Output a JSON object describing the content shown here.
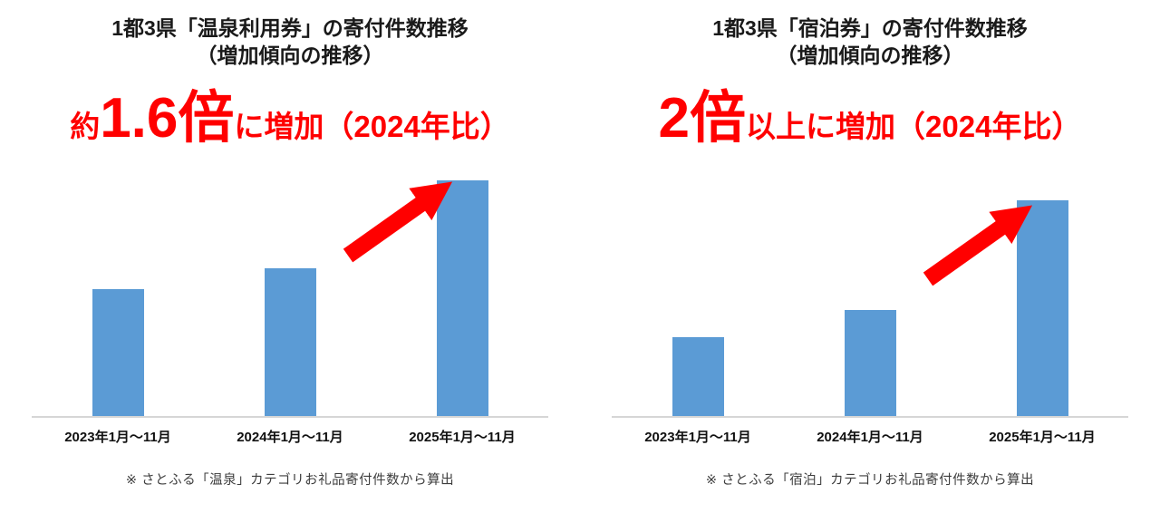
{
  "page": {
    "background": "#ffffff",
    "bar_color": "#5b9bd5",
    "highlight_color": "#ff0000"
  },
  "chart_data": [
    {
      "type": "bar",
      "title": "1都3県「温泉利用券」の寄付件数推移",
      "subtitle": "（増加傾向の推移）",
      "annotation": {
        "prefix": "約",
        "big": "1.6倍",
        "rest": "に増加（2024年比）",
        "color": "#ff0000"
      },
      "categories": [
        "2023年1月～11月",
        "2024年1月～11月",
        "2025年1月～11月"
      ],
      "values": [
        86,
        100,
        160
      ],
      "values_note": "relative donation counts indexed to 2024 = 100 (no y-axis shown in chart)",
      "ylim": [
        0,
        170
      ],
      "xlabel": "",
      "ylabel": "",
      "grid": false,
      "legend": false,
      "bar_color": "#5b9bd5",
      "arrow_color": "#ff0000",
      "footnote": "※ さとふる「温泉」カテゴリお礼品寄付件数から算出"
    },
    {
      "type": "bar",
      "title": "1都3県「宿泊券」の寄付件数推移",
      "subtitle": "（増加傾向の推移）",
      "annotation": {
        "prefix": "",
        "big": "2倍",
        "rest": "以上に増加（2024年比）",
        "color": "#ff0000"
      },
      "categories": [
        "2023年1月～11月",
        "2024年1月～11月",
        "2025年1月～11月"
      ],
      "values": [
        74,
        100,
        203
      ],
      "values_note": "relative donation counts indexed to 2024 = 100 (no y-axis shown in chart)",
      "ylim": [
        0,
        210
      ],
      "xlabel": "",
      "ylabel": "",
      "grid": false,
      "legend": false,
      "bar_color": "#5b9bd5",
      "arrow_color": "#ff0000",
      "footnote": "※ さとふる「宿泊」カテゴリお礼品寄付件数から算出"
    }
  ]
}
